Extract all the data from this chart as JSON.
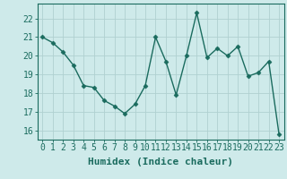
{
  "x": [
    0,
    1,
    2,
    3,
    4,
    5,
    6,
    7,
    8,
    9,
    10,
    11,
    12,
    13,
    14,
    15,
    16,
    17,
    18,
    19,
    20,
    21,
    22,
    23
  ],
  "y": [
    21.0,
    20.7,
    20.2,
    19.5,
    18.4,
    18.3,
    17.6,
    17.3,
    16.9,
    17.4,
    18.4,
    21.0,
    19.7,
    17.9,
    20.0,
    22.3,
    19.9,
    20.4,
    20.0,
    20.5,
    18.9,
    19.1,
    19.7,
    15.8
  ],
  "line_color": "#1a6b5e",
  "marker": "D",
  "marker_size": 2.5,
  "bg_color": "#ceeaea",
  "grid_color": "#b0d0d0",
  "xlabel": "Humidex (Indice chaleur)",
  "ylim": [
    15.5,
    22.8
  ],
  "xlim": [
    -0.5,
    23.5
  ],
  "yticks": [
    16,
    17,
    18,
    19,
    20,
    21,
    22
  ],
  "xticks": [
    0,
    1,
    2,
    3,
    4,
    5,
    6,
    7,
    8,
    9,
    10,
    11,
    12,
    13,
    14,
    15,
    16,
    17,
    18,
    19,
    20,
    21,
    22,
    23
  ],
  "tick_color": "#1a6b5e",
  "spine_color": "#1a6b5e",
  "xlabel_fontsize": 8,
  "tick_fontsize": 7,
  "linewidth": 1.0
}
